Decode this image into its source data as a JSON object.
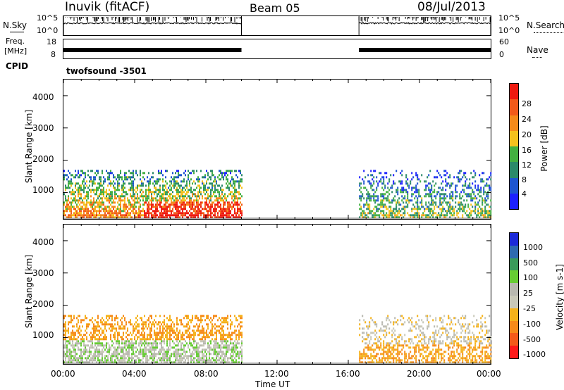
{
  "header": {
    "title": "Inuvik (fitACF)",
    "beam": "Beam 05",
    "date": "08/Jul/2013"
  },
  "noise_panel": {
    "left_label": "N.Sky",
    "right_label": "N.Search",
    "tick_top": "10^5",
    "tick_bottom": "10^0"
  },
  "freq_panel": {
    "left_label_top": "Freq.",
    "left_label_unit": "[MHz]",
    "left_tick_top": "18",
    "left_tick_bottom": "8",
    "right_tick_top": "60",
    "right_tick_bottom": "0",
    "right_label": "Nave"
  },
  "cpid": {
    "label": "CPID",
    "value": "twofsound -3501"
  },
  "colors": {
    "power_scale": [
      "#1c20ff",
      "#1e55d0",
      "#2b8a6a",
      "#43b040",
      "#f4c11d",
      "#f58a1a",
      "#f25a1a",
      "#ee1a10"
    ],
    "velocity_scale": [
      "#ff1a1a",
      "#f45a1a",
      "#f68a1a",
      "#f5b21a",
      "#c8c8b8",
      "#b8b8b0",
      "#66cc33",
      "#3a9a5a",
      "#2e6ab0",
      "#1c2ad8"
    ]
  },
  "chart_data": [
    {
      "type": "heatmap",
      "title": "",
      "ylabel": "Slant Range [km]",
      "xlabel": "",
      "y_ticks": [
        "1000",
        "2000",
        "3000",
        "4000"
      ],
      "ylim": [
        180,
        4500
      ],
      "x_range_hours": [
        0,
        24
      ],
      "colorbar": {
        "label": "Power [dB]",
        "ticks": [
          "4",
          "8",
          "12",
          "16",
          "20",
          "24",
          "28"
        ],
        "range": [
          0,
          30
        ]
      },
      "data_intervals_hours": [
        [
          0,
          10
        ],
        [
          16.6,
          24
        ]
      ],
      "gap_hours": [
        10,
        16.6
      ],
      "max_range_km": 1700
    },
    {
      "type": "heatmap",
      "title": "",
      "ylabel": "Slant Range [km]",
      "xlabel": "Time UT",
      "x_tick_labels": [
        "00:00",
        "04:00",
        "08:00",
        "12:00",
        "16:00",
        "20:00",
        "00:00"
      ],
      "y_ticks": [
        "1000",
        "2000",
        "3000",
        "4000"
      ],
      "ylim": [
        180,
        4500
      ],
      "x_range_hours": [
        0,
        24
      ],
      "colorbar": {
        "label": "Velocity [m s-1]",
        "ticks": [
          "1000",
          "500",
          "100",
          "25",
          "-25",
          "-100",
          "-500",
          "-1000"
        ],
        "range": [
          -1200,
          1200
        ]
      },
      "data_intervals_hours": [
        [
          0,
          10
        ],
        [
          16.6,
          24
        ]
      ],
      "gap_hours": [
        10,
        16.6
      ],
      "max_range_km": 1700
    }
  ]
}
